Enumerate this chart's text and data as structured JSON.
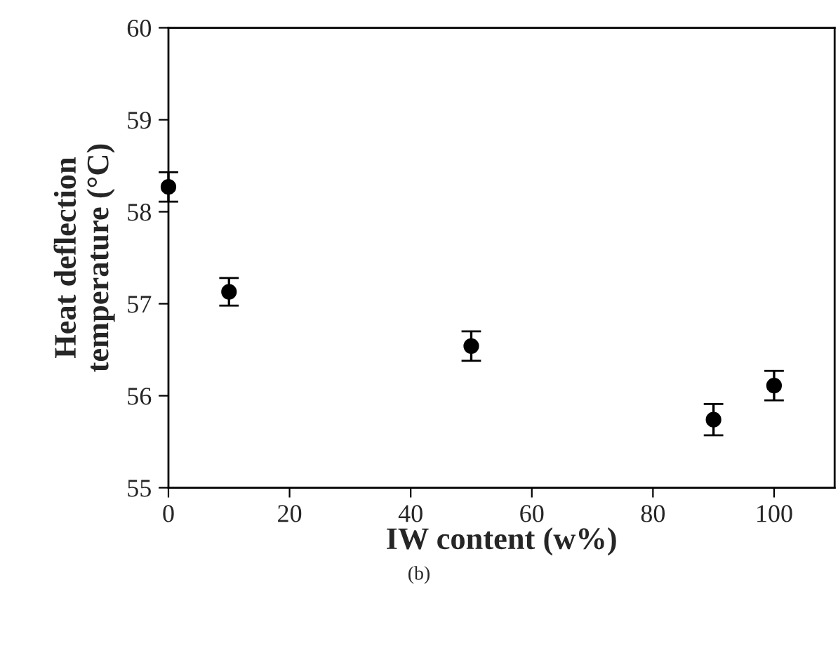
{
  "chart_data": {
    "type": "scatter",
    "xlabel": "IW content (w%)",
    "ylabel": "Heat deflection\ntemperature (°C)",
    "x": [
      0,
      10,
      50,
      90,
      100
    ],
    "series": [
      {
        "color": "#000000",
        "values": [
          58.27,
          57.13,
          56.54,
          55.74,
          56.11
        ],
        "errors": [
          0.16,
          0.15,
          0.16,
          0.17,
          0.16
        ]
      }
    ],
    "xlim": [
      0,
      110
    ],
    "xticks": [
      0,
      20,
      40,
      60,
      80,
      100
    ],
    "ylim": [
      55,
      60
    ],
    "yticks": [
      55,
      56,
      57,
      58,
      59,
      60
    ],
    "marker": "circle",
    "grid": false,
    "annotations": [
      "(b)"
    ]
  }
}
